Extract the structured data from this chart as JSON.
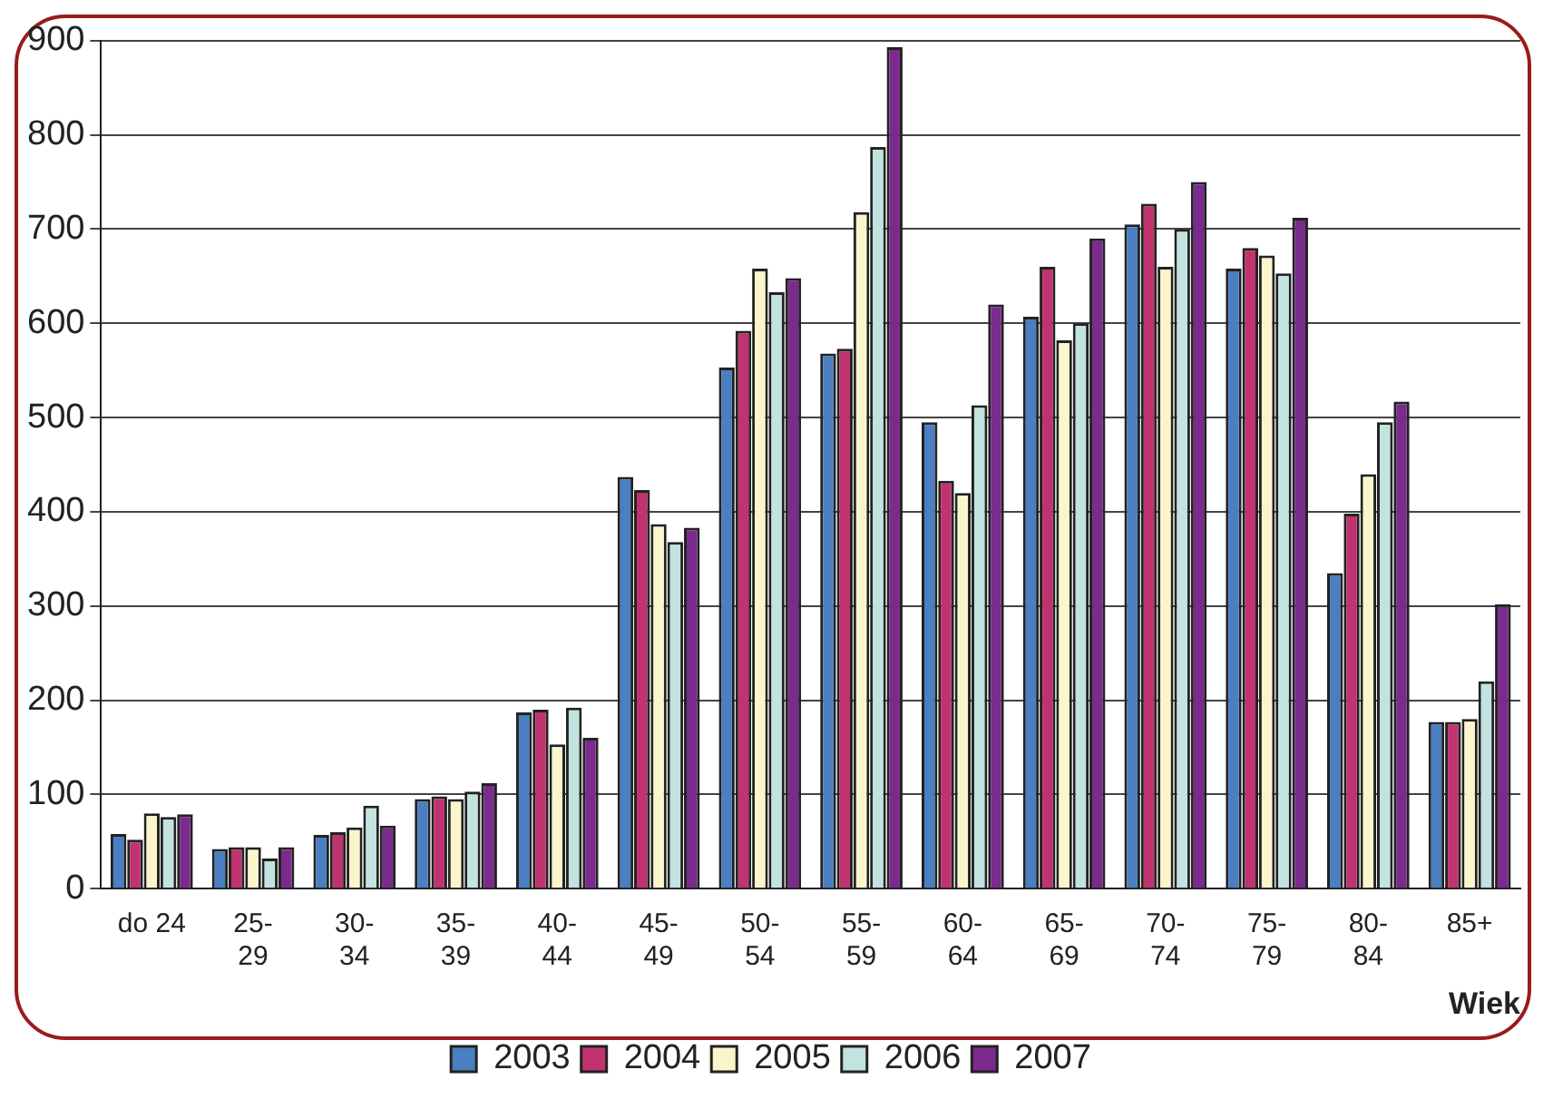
{
  "chart_data": {
    "type": "bar",
    "xlabel": "Wiek",
    "categories": [
      "do 24",
      "25-29",
      "30-34",
      "35-39",
      "40-44",
      "45-49",
      "50-54",
      "55-59",
      "60-64",
      "65-69",
      "70-74",
      "75-79",
      "80-84",
      "85+"
    ],
    "series": [
      {
        "name": "2003",
        "color": "#4a7fc1",
        "values": [
          58,
          42,
          57,
          95,
          187,
          437,
          553,
          568,
          495,
          607,
          705,
          658,
          335,
          177
        ]
      },
      {
        "name": "2004",
        "color": "#c0336e",
        "values": [
          52,
          44,
          60,
          98,
          190,
          423,
          592,
          573,
          433,
          660,
          727,
          680,
          398,
          177
        ]
      },
      {
        "name": "2005",
        "color": "#fbf5cc",
        "values": [
          80,
          44,
          65,
          95,
          153,
          387,
          658,
          718,
          420,
          582,
          660,
          672,
          440,
          180
        ]
      },
      {
        "name": "2006",
        "color": "#c2e3e0",
        "values": [
          76,
          32,
          88,
          103,
          192,
          368,
          633,
          787,
          513,
          600,
          700,
          653,
          495,
          220
        ]
      },
      {
        "name": "2007",
        "color": "#7b2a8e",
        "values": [
          79,
          44,
          67,
          112,
          160,
          383,
          648,
          893,
          620,
          690,
          750,
          712,
          517,
          302
        ]
      }
    ],
    "ylim": [
      0,
      900
    ],
    "yticks": [
      0,
      100,
      200,
      300,
      400,
      500,
      600,
      700,
      800,
      900
    ],
    "grid": "y",
    "legend": "bottom"
  }
}
